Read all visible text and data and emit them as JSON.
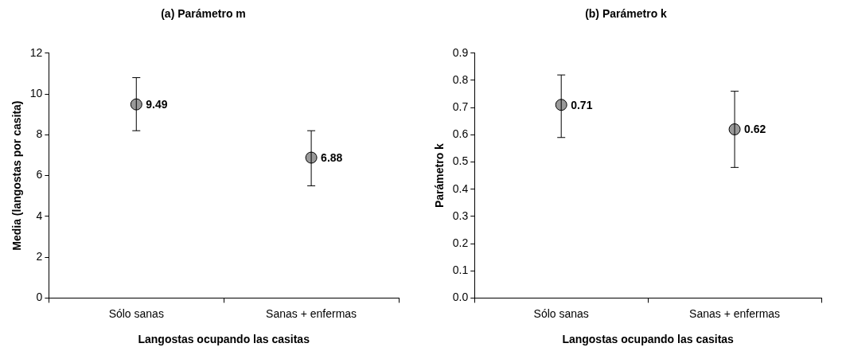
{
  "chart_data": [
    {
      "type": "scatter",
      "title": "(a) Parámetro m",
      "xlabel": "Langostas ocupando las casitas",
      "ylabel": "Media (langostas por casita)",
      "categories": [
        "Sólo sanas",
        "Sanas + enfermas"
      ],
      "series": [
        {
          "color": "#999999",
          "values": [
            9.49,
            6.88
          ],
          "errors": [
            [
              8.2,
              10.8
            ],
            [
              5.5,
              8.2
            ]
          ]
        }
      ],
      "ylim": [
        0,
        12
      ],
      "yticks": [
        0,
        2,
        4,
        6,
        8,
        10,
        12
      ],
      "grid": false,
      "legend": false,
      "marker": "circle",
      "data_labels": true
    },
    {
      "type": "scatter",
      "title": "(b) Parámetro k",
      "xlabel": "Langostas ocupando las casitas",
      "ylabel": "Parámetro k",
      "categories": [
        "Sólo sanas",
        "Sanas + enfermas"
      ],
      "series": [
        {
          "color": "#999999",
          "values": [
            0.71,
            0.62
          ],
          "errors": [
            [
              0.59,
              0.82
            ],
            [
              0.48,
              0.76
            ]
          ]
        }
      ],
      "ylim": [
        0,
        0.9
      ],
      "yticks": [
        {
          "value": 0,
          "label": "0.0"
        },
        {
          "value": 0.1,
          "label": "0.1"
        },
        {
          "value": 0.2,
          "label": "0.2"
        },
        {
          "value": 0.3,
          "label": "0.3"
        },
        {
          "value": 0.4,
          "label": "0.4"
        },
        {
          "value": 0.5,
          "label": "0.5"
        },
        {
          "value": 0.6,
          "label": "0.6"
        },
        {
          "value": 0.7,
          "label": "0.7"
        },
        {
          "value": 0.8,
          "label": "0.8"
        },
        {
          "value": 0.9,
          "label": "0.9"
        }
      ],
      "grid": false,
      "legend": false,
      "marker": "circle",
      "data_labels": true
    }
  ]
}
